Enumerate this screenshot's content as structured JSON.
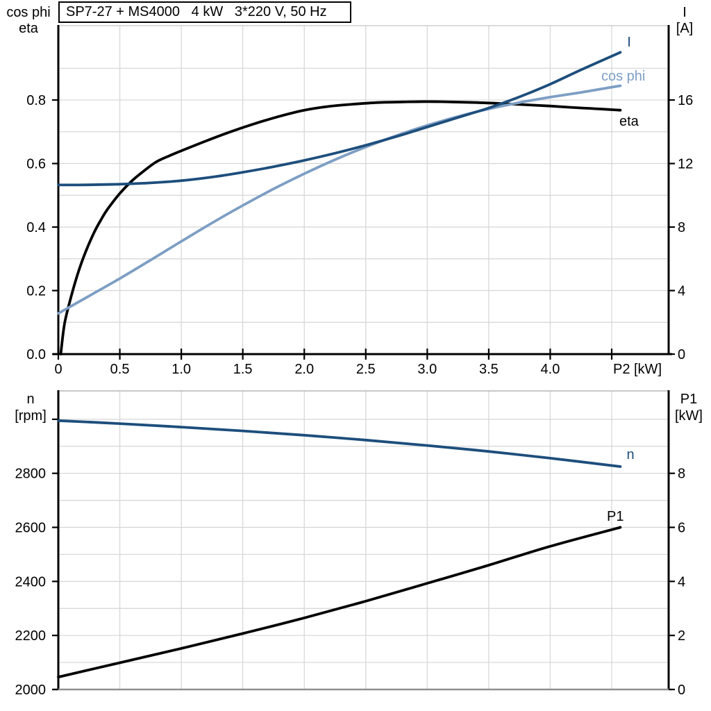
{
  "title": "SP7-27 + MS4000   4 kW   3*220 V, 50 Hz",
  "colors": {
    "dark_blue": "#1d4e7c",
    "light_blue": "#7d9ec4",
    "black": "#000000",
    "grid": "#d5d5d5",
    "frame_top_gray": "#c3c3c3",
    "frame_bottom_gray": "#8f8f8f"
  },
  "chart_data": [
    {
      "type": "line",
      "title": "SP7-27 + MS4000   4 kW   3*220 V, 50 Hz",
      "x_axis": {
        "unit_label": "P2 [kW]",
        "range": [
          0,
          4.963
        ],
        "grid_step": 0.5,
        "ticks": [
          0,
          0.5,
          1,
          1.5,
          2,
          2.5,
          3,
          3.5,
          4,
          4.5
        ],
        "tick_labels": [
          "0",
          "0.5",
          "1.0",
          "1.5",
          "2.0",
          "2.5",
          "3.0",
          "3.5",
          "4.0",
          ""
        ]
      },
      "left_axis": {
        "label_lines": [
          "cos phi",
          "eta"
        ],
        "range": [
          0,
          1.034
        ],
        "grid_step": 0.1,
        "ticks": [
          0,
          0.2,
          0.4,
          0.6,
          0.8
        ],
        "tick_labels": [
          "0.0",
          "0.2",
          "0.4",
          "0.6",
          "0.8"
        ]
      },
      "right_axis": {
        "label_lines": [
          "I",
          "[A]"
        ],
        "range": [
          0,
          20.68
        ],
        "ticks": [
          0,
          4,
          8,
          12,
          16
        ],
        "tick_labels": [
          "0",
          "4",
          "8",
          "12",
          "16"
        ]
      },
      "series": [
        {
          "name": "eta",
          "axis": "left",
          "color": "#000000",
          "points": [
            [
              0.02,
              0
            ],
            [
              0.05,
              0.095
            ],
            [
              0.1,
              0.175
            ],
            [
              0.15,
              0.243
            ],
            [
              0.2,
              0.3
            ],
            [
              0.25,
              0.348
            ],
            [
              0.3,
              0.39
            ],
            [
              0.35,
              0.425
            ],
            [
              0.4,
              0.456
            ],
            [
              0.5,
              0.506
            ],
            [
              0.6,
              0.546
            ],
            [
              0.7,
              0.578
            ],
            [
              0.8,
              0.606
            ],
            [
              0.9,
              0.624
            ],
            [
              1.0,
              0.64
            ],
            [
              1.2,
              0.671
            ],
            [
              1.4,
              0.7
            ],
            [
              1.6,
              0.726
            ],
            [
              1.8,
              0.749
            ],
            [
              2.0,
              0.768
            ],
            [
              2.2,
              0.78
            ],
            [
              2.4,
              0.787
            ],
            [
              2.6,
              0.792
            ],
            [
              2.8,
              0.794
            ],
            [
              3.0,
              0.795
            ],
            [
              3.2,
              0.794
            ],
            [
              3.4,
              0.792
            ],
            [
              3.6,
              0.789
            ],
            [
              3.8,
              0.785
            ],
            [
              4.0,
              0.781
            ],
            [
              4.2,
              0.776
            ],
            [
              4.4,
              0.772
            ],
            [
              4.57,
              0.768
            ]
          ]
        },
        {
          "name": "cos phi",
          "axis": "left",
          "color": "#7d9ec4",
          "points": [
            [
              0,
              0.128
            ],
            [
              0.25,
              0.183
            ],
            [
              0.5,
              0.238
            ],
            [
              0.75,
              0.296
            ],
            [
              1.0,
              0.355
            ],
            [
              1.25,
              0.413
            ],
            [
              1.5,
              0.468
            ],
            [
              1.75,
              0.52
            ],
            [
              2.0,
              0.568
            ],
            [
              2.25,
              0.612
            ],
            [
              2.5,
              0.652
            ],
            [
              2.75,
              0.688
            ],
            [
              3.0,
              0.72
            ],
            [
              3.25,
              0.748
            ],
            [
              3.5,
              0.772
            ],
            [
              3.75,
              0.792
            ],
            [
              4.0,
              0.809
            ],
            [
              4.25,
              0.824
            ],
            [
              4.57,
              0.845
            ]
          ]
        },
        {
          "name": "I",
          "axis": "right",
          "color": "#1d4e7c",
          "points": [
            [
              0,
              10.65
            ],
            [
              0.25,
              10.66
            ],
            [
              0.5,
              10.7
            ],
            [
              0.75,
              10.78
            ],
            [
              1.0,
              10.92
            ],
            [
              1.25,
              11.15
            ],
            [
              1.5,
              11.45
            ],
            [
              1.75,
              11.8
            ],
            [
              2.0,
              12.2
            ],
            [
              2.25,
              12.65
            ],
            [
              2.5,
              13.15
            ],
            [
              2.75,
              13.7
            ],
            [
              3.0,
              14.3
            ],
            [
              3.25,
              14.9
            ],
            [
              3.5,
              15.5
            ],
            [
              3.75,
              16.2
            ],
            [
              4.0,
              17.0
            ],
            [
              4.25,
              17.9
            ],
            [
              4.57,
              19.0
            ]
          ]
        }
      ]
    },
    {
      "type": "line",
      "title": "",
      "x_axis": {
        "unit_label": "",
        "range": [
          0,
          4.963
        ],
        "grid_step": 0.5,
        "ticks": [],
        "tick_labels": []
      },
      "left_axis": {
        "label_lines": [
          "n",
          "[rpm]"
        ],
        "range": [
          2000,
          3105
        ],
        "grid_step": 100,
        "ticks": [
          2000,
          2200,
          2400,
          2600,
          2800,
          3000
        ],
        "tick_labels": [
          "2000",
          "2200",
          "2400",
          "2600",
          "2800",
          ""
        ]
      },
      "right_axis": {
        "label_lines": [
          "P1",
          "[kW]"
        ],
        "range": [
          0,
          11.05
        ],
        "ticks": [
          0,
          2,
          4,
          6,
          8
        ],
        "tick_labels": [
          "0",
          "2",
          "4",
          "6",
          "8"
        ]
      },
      "series": [
        {
          "name": "n",
          "axis": "left",
          "color": "#1d4e7c",
          "points": [
            [
              0,
              2995
            ],
            [
              0.5,
              2984
            ],
            [
              1.0,
              2971
            ],
            [
              1.5,
              2957
            ],
            [
              2.0,
              2941
            ],
            [
              2.5,
              2923
            ],
            [
              3.0,
              2903
            ],
            [
              3.5,
              2881
            ],
            [
              4.0,
              2856
            ],
            [
              4.57,
              2825
            ]
          ]
        },
        {
          "name": "P1",
          "axis": "right",
          "color": "#000000",
          "points": [
            [
              0,
              0.46
            ],
            [
              0.5,
              0.99
            ],
            [
              1.0,
              1.52
            ],
            [
              1.5,
              2.07
            ],
            [
              2.0,
              2.65
            ],
            [
              2.5,
              3.27
            ],
            [
              3.0,
              3.93
            ],
            [
              3.5,
              4.6
            ],
            [
              4.0,
              5.3
            ],
            [
              4.57,
              6.0
            ]
          ]
        }
      ]
    }
  ]
}
